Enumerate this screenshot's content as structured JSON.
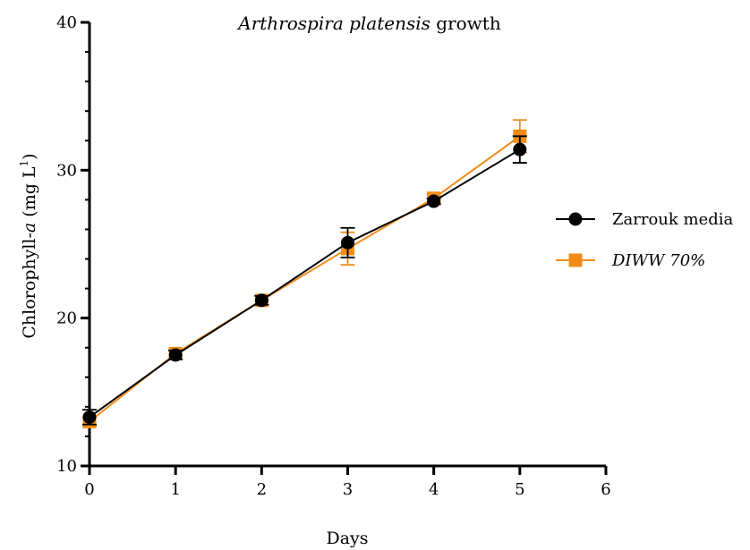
{
  "chart_data": {
    "type": "line",
    "title_italic": "Arthrospira platensis",
    "title_rest": " growth",
    "xlabel": "Days",
    "ylabel_prefix": "Chlorophyll-",
    "ylabel_italic": "a",
    "ylabel_units": " (mg L",
    "ylabel_sup": "1",
    "ylabel_close": ")",
    "xlim": [
      0,
      6
    ],
    "ylim": [
      10,
      40
    ],
    "xticks": [
      "0",
      "1",
      "2",
      "3",
      "4",
      "5",
      "6"
    ],
    "yticks": [
      "10",
      "20",
      "30",
      "40"
    ],
    "minor_yticks_per_major": 5,
    "legend_position": "right",
    "series": [
      {
        "name": "Zarrouk media",
        "italic": false,
        "marker": "circle",
        "color": "#000000",
        "x": [
          0,
          1,
          2,
          3,
          4,
          5
        ],
        "y": [
          13.3,
          17.5,
          21.2,
          25.1,
          27.9,
          31.4
        ],
        "err": [
          0.5,
          0.3,
          0.3,
          1.0,
          0.2,
          0.9
        ]
      },
      {
        "name": "DIWW 70%",
        "italic": true,
        "marker": "square",
        "color": "#f28c18",
        "x": [
          0,
          1,
          2,
          3,
          4,
          5
        ],
        "y": [
          13.0,
          17.6,
          21.2,
          24.7,
          28.1,
          32.3
        ],
        "err": [
          0.3,
          0.3,
          0.3,
          1.1,
          0.3,
          1.1
        ]
      }
    ]
  }
}
